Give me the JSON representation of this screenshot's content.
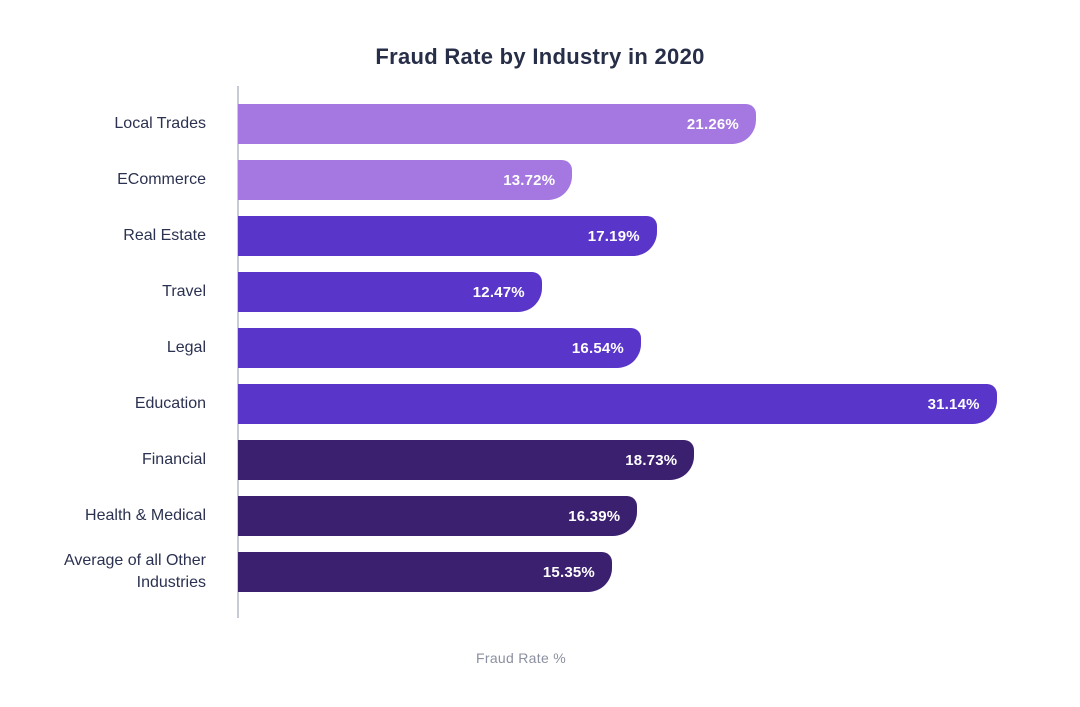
{
  "chart_data": {
    "type": "bar",
    "orientation": "horizontal",
    "title": "Fraud Rate by Industry in 2020",
    "xlabel": "Fraud Rate %",
    "ylabel": "",
    "xlim": [
      0,
      33
    ],
    "grid": false,
    "legend": "none",
    "categories": [
      "Local Trades",
      "ECommerce",
      "Real Estate",
      "Travel",
      "Legal",
      "Education",
      "Financial",
      "Health & Medical",
      "Average of all Other Industries"
    ],
    "values": [
      21.26,
      13.72,
      17.19,
      12.47,
      16.54,
      31.14,
      18.73,
      16.39,
      15.35
    ],
    "value_labels": [
      "21.26%",
      "13.72%",
      "17.19%",
      "12.47%",
      "16.54%",
      "31.14%",
      "18.73%",
      "16.39%",
      "15.35%"
    ],
    "bar_colors": [
      "#a478e0",
      "#a478e0",
      "#5936c9",
      "#5936c9",
      "#5936c9",
      "#5936c9",
      "#3b2070",
      "#3b2070",
      "#3b2070"
    ],
    "colors": {
      "light_purple": "#a478e0",
      "medium_purple": "#5936c9",
      "dark_purple": "#3b2070",
      "title_text": "#272e48",
      "category_text": "#2b3150",
      "axis_label_text": "#8b90a0",
      "axis_line": "#c9cbd4",
      "value_text": "#ffffff",
      "background": "#ffffff"
    }
  }
}
